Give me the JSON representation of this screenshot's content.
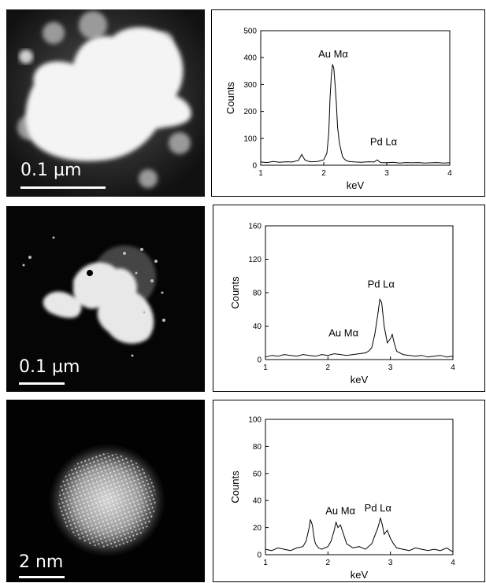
{
  "micrographs": [
    {
      "scale_label": "0.1 µm"
    },
    {
      "scale_label": "0.1 µm"
    },
    {
      "scale_label": "2 nm"
    }
  ],
  "chart_data": [
    {
      "type": "line",
      "xlabel": "keV",
      "ylabel": "Counts",
      "xlim": [
        1,
        4
      ],
      "ylim": [
        0,
        500
      ],
      "xticks": [
        1,
        2,
        3,
        4
      ],
      "yticks": [
        0,
        100,
        200,
        300,
        400,
        500
      ],
      "annotations": [
        {
          "text": "Au Mα",
          "x": 2.15,
          "y": 400
        },
        {
          "text": "Pd Lα",
          "x": 2.95,
          "y": 75
        }
      ],
      "series": [
        {
          "x": [
            1.0,
            1.1,
            1.2,
            1.3,
            1.4,
            1.5,
            1.6,
            1.65,
            1.7,
            1.75,
            1.8,
            1.9,
            2.0,
            2.05,
            2.08,
            2.1,
            2.12,
            2.14,
            2.16,
            2.18,
            2.2,
            2.22,
            2.25,
            2.3,
            2.35,
            2.4,
            2.5,
            2.6,
            2.7,
            2.8,
            2.85,
            2.9,
            3.0,
            3.1,
            3.2,
            3.3,
            3.4,
            3.5,
            3.6,
            3.7,
            3.8,
            3.9,
            4.0
          ],
          "y": [
            12,
            10,
            14,
            11,
            13,
            12,
            18,
            40,
            20,
            15,
            13,
            14,
            20,
            45,
            120,
            250,
            330,
            375,
            360,
            300,
            230,
            140,
            80,
            30,
            18,
            14,
            12,
            11,
            13,
            12,
            20,
            10,
            9,
            11,
            8,
            10,
            9,
            10,
            8,
            9,
            10,
            8,
            9
          ]
        }
      ]
    },
    {
      "type": "line",
      "xlabel": "keV",
      "ylabel": "Counts",
      "xlim": [
        1,
        4
      ],
      "ylim": [
        0,
        160
      ],
      "xticks": [
        1,
        2,
        3,
        4
      ],
      "yticks": [
        0,
        40,
        80,
        120,
        160
      ],
      "annotations": [
        {
          "text": "Au Mα",
          "x": 2.25,
          "y": 28
        },
        {
          "text": "Pd Lα",
          "x": 2.85,
          "y": 86
        }
      ],
      "series": [
        {
          "x": [
            1.0,
            1.1,
            1.2,
            1.3,
            1.4,
            1.5,
            1.6,
            1.7,
            1.8,
            1.9,
            2.0,
            2.1,
            2.2,
            2.3,
            2.4,
            2.5,
            2.6,
            2.65,
            2.7,
            2.75,
            2.8,
            2.83,
            2.86,
            2.9,
            2.95,
            3.0,
            3.03,
            3.06,
            3.1,
            3.2,
            3.3,
            3.4,
            3.5,
            3.6,
            3.7,
            3.8,
            3.9,
            4.0
          ],
          "y": [
            3,
            5,
            4,
            6,
            5,
            4,
            6,
            5,
            4,
            6,
            5,
            7,
            6,
            5,
            6,
            7,
            8,
            10,
            14,
            30,
            55,
            72,
            68,
            40,
            20,
            25,
            30,
            20,
            10,
            6,
            5,
            4,
            5,
            3,
            4,
            5,
            3,
            4
          ]
        }
      ]
    },
    {
      "type": "line",
      "xlabel": "keV",
      "ylabel": "Counts",
      "xlim": [
        1,
        4
      ],
      "ylim": [
        0,
        100
      ],
      "xticks": [
        1,
        2,
        3,
        4
      ],
      "yticks": [
        0,
        20,
        40,
        60,
        80,
        100
      ],
      "annotations": [
        {
          "text": "Au Mα",
          "x": 2.2,
          "y": 30
        },
        {
          "text": "Pd Lα",
          "x": 2.8,
          "y": 32
        }
      ],
      "series": [
        {
          "x": [
            1.0,
            1.1,
            1.2,
            1.3,
            1.4,
            1.5,
            1.6,
            1.65,
            1.7,
            1.72,
            1.75,
            1.78,
            1.8,
            1.85,
            1.9,
            2.0,
            2.05,
            2.1,
            2.13,
            2.16,
            2.2,
            2.25,
            2.3,
            2.4,
            2.5,
            2.6,
            2.7,
            2.75,
            2.8,
            2.84,
            2.87,
            2.9,
            2.95,
            3.0,
            3.05,
            3.1,
            3.2,
            3.3,
            3.4,
            3.5,
            3.6,
            3.7,
            3.8,
            3.9,
            4.0
          ],
          "y": [
            4,
            3,
            5,
            4,
            3,
            5,
            6,
            10,
            20,
            26,
            22,
            12,
            8,
            5,
            4,
            6,
            10,
            18,
            24,
            20,
            22,
            15,
            8,
            5,
            6,
            4,
            8,
            14,
            20,
            27,
            22,
            15,
            18,
            12,
            8,
            5,
            4,
            3,
            5,
            4,
            3,
            4,
            3,
            5,
            2
          ]
        }
      ]
    }
  ]
}
